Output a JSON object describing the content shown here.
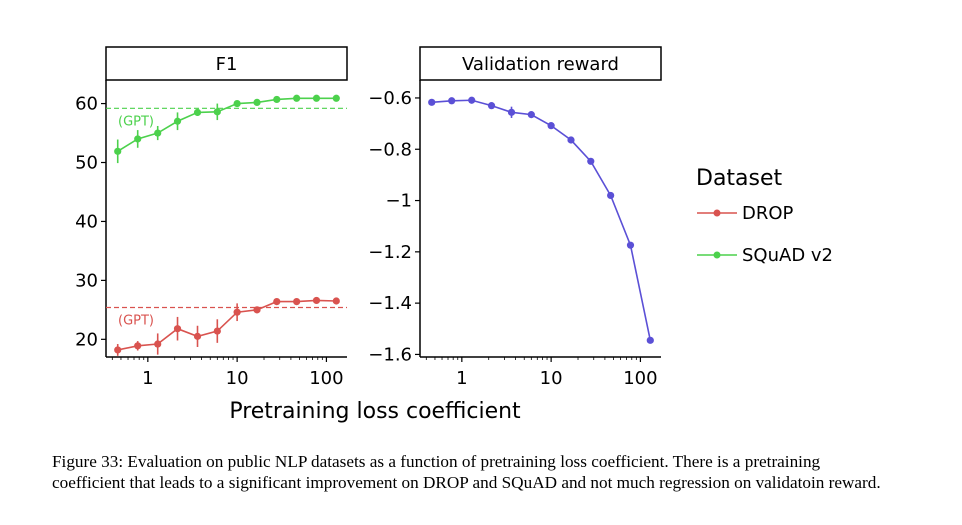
{
  "figure": {
    "xlabel": "Pretraining loss coefficient",
    "x_ticks": [
      {
        "value": 1,
        "label": "1"
      },
      {
        "value": 10,
        "label": "10"
      },
      {
        "value": 100,
        "label": "100"
      }
    ]
  },
  "legend": {
    "title": "Dataset",
    "items": [
      {
        "label": "DROP",
        "color": "#d9534f"
      },
      {
        "label": "SQuAD v2",
        "color": "#4cd14c"
      }
    ]
  },
  "chart_data": [
    {
      "type": "line",
      "title": "F1",
      "xlabel": "Pretraining loss coefficient",
      "ylabel": "",
      "xscale": "log",
      "xlim": [
        0.34,
        170
      ],
      "ylim": [
        17,
        64
      ],
      "y_ticks": [
        {
          "value": 20,
          "label": "20"
        },
        {
          "value": 30,
          "label": "30"
        },
        {
          "value": 40,
          "label": "40"
        },
        {
          "value": 50,
          "label": "50"
        },
        {
          "value": 60,
          "label": "60"
        }
      ],
      "x": [
        0.46,
        0.77,
        1.29,
        2.15,
        3.6,
        6.0,
        10,
        16.7,
        27.8,
        46.4,
        77.4,
        129
      ],
      "series": [
        {
          "name": "SQuAD v2",
          "color": "#4cd14c",
          "values": [
            51.9,
            54.0,
            55.0,
            57.0,
            58.5,
            58.6,
            60.0,
            60.2,
            60.7,
            60.9,
            60.9,
            60.9
          ],
          "errors": [
            2.0,
            1.5,
            1.2,
            1.5,
            0.6,
            1.4,
            0.5,
            0.4,
            0.3,
            0.3,
            0.3,
            0.3
          ]
        },
        {
          "name": "DROP",
          "color": "#d9534f",
          "values": [
            18.2,
            18.9,
            19.2,
            21.8,
            20.5,
            21.4,
            24.6,
            25.0,
            26.4,
            26.4,
            26.6,
            26.5
          ],
          "errors": [
            1.0,
            0.8,
            1.8,
            2.0,
            1.8,
            2.0,
            1.5,
            0.5,
            0.4,
            0.4,
            0.4,
            0.4
          ]
        }
      ],
      "annotations": [
        {
          "label": "(GPT)",
          "y": 59.2,
          "color": "#4cd14c",
          "style": "dashed"
        },
        {
          "label": "(GPT)",
          "y": 25.4,
          "color": "#d9534f",
          "style": "dashed"
        }
      ],
      "grid": false
    },
    {
      "type": "line",
      "title": "Validation reward",
      "xlabel": "Pretraining loss coefficient",
      "ylabel": "",
      "xscale": "log",
      "xlim": [
        0.34,
        170
      ],
      "ylim": [
        -1.61,
        -0.53
      ],
      "y_ticks": [
        {
          "value": -0.6,
          "label": "−0.6"
        },
        {
          "value": -0.8,
          "label": "−0.8"
        },
        {
          "value": -1.0,
          "label": "−1"
        },
        {
          "value": -1.2,
          "label": "−1.2"
        },
        {
          "value": -1.4,
          "label": "−1.4"
        },
        {
          "value": -1.6,
          "label": "−1.6"
        }
      ],
      "x": [
        0.46,
        0.77,
        1.29,
        2.15,
        3.6,
        6.0,
        10,
        16.7,
        27.8,
        46.4,
        77.4,
        129
      ],
      "series": [
        {
          "name": "Validation reward",
          "color": "#5b50d6",
          "values": [
            -0.617,
            -0.611,
            -0.609,
            -0.63,
            -0.656,
            -0.665,
            -0.708,
            -0.764,
            -0.847,
            -0.98,
            -1.174,
            -1.545
          ],
          "errors": [
            0.012,
            0.01,
            0.008,
            0.012,
            0.022,
            0.012,
            0.01,
            0.012,
            0.008,
            0.008,
            0.008,
            0.008
          ]
        }
      ],
      "grid": false
    }
  ],
  "caption": "Figure 33: Evaluation on public NLP datasets as a function of pretraining loss coefficient. There is a pretraining coefficient that leads to a significant improvement on DROP and SQuAD and not much regression on validatoin reward."
}
